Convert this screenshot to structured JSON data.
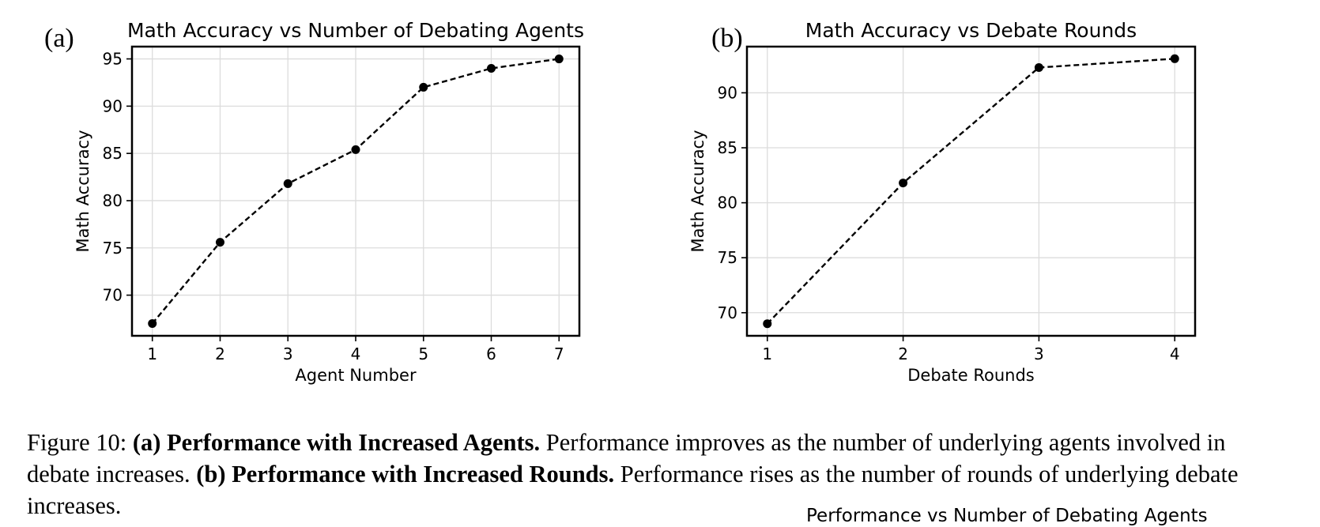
{
  "panels": [
    {
      "letter": "(a)"
    },
    {
      "letter": "(b)"
    }
  ],
  "chart_data": [
    {
      "type": "line",
      "title": "Math Accuracy vs Number of Debating Agents",
      "xlabel": "Agent Number",
      "ylabel": "Math Accuracy",
      "x": [
        1,
        2,
        3,
        4,
        5,
        6,
        7
      ],
      "series": [
        {
          "values": [
            67.0,
            75.6,
            81.8,
            85.4,
            92.0,
            94.0,
            95.0
          ]
        }
      ],
      "xticks": [
        "1",
        "2",
        "3",
        "4",
        "5",
        "6",
        "7"
      ],
      "yticks": [
        "70",
        "75",
        "80",
        "85",
        "90",
        "95"
      ],
      "xlim": [
        0.7,
        7.3
      ],
      "ylim": [
        65.7,
        96.3
      ],
      "grid": true,
      "line_style": "dashed",
      "marker": "circle",
      "color": "#000000"
    },
    {
      "type": "line",
      "title": "Math Accuracy vs Debate Rounds",
      "xlabel": "Debate Rounds",
      "ylabel": "Math Accuracy",
      "x": [
        1,
        2,
        3,
        4
      ],
      "series": [
        {
          "values": [
            69.0,
            81.8,
            92.3,
            93.1
          ]
        }
      ],
      "xticks": [
        "1",
        "2",
        "3",
        "4"
      ],
      "yticks": [
        "70",
        "75",
        "80",
        "85",
        "90"
      ],
      "xlim": [
        0.85,
        4.15
      ],
      "ylim": [
        67.9,
        94.2
      ],
      "grid": true,
      "line_style": "dashed",
      "marker": "circle",
      "color": "#000000"
    }
  ],
  "caption": {
    "figure_label": "Figure 10:",
    "a_bold": "(a) Performance with Increased Agents.",
    "a_text": "Performance improves as the number of underlying agents involved in debate increases.",
    "b_bold": "(b) Performance with Increased Rounds.",
    "b_text": "Performance rises as the number of rounds of underlying debate increases."
  },
  "next_figure_title": "Performance vs Number of Debating Agents"
}
